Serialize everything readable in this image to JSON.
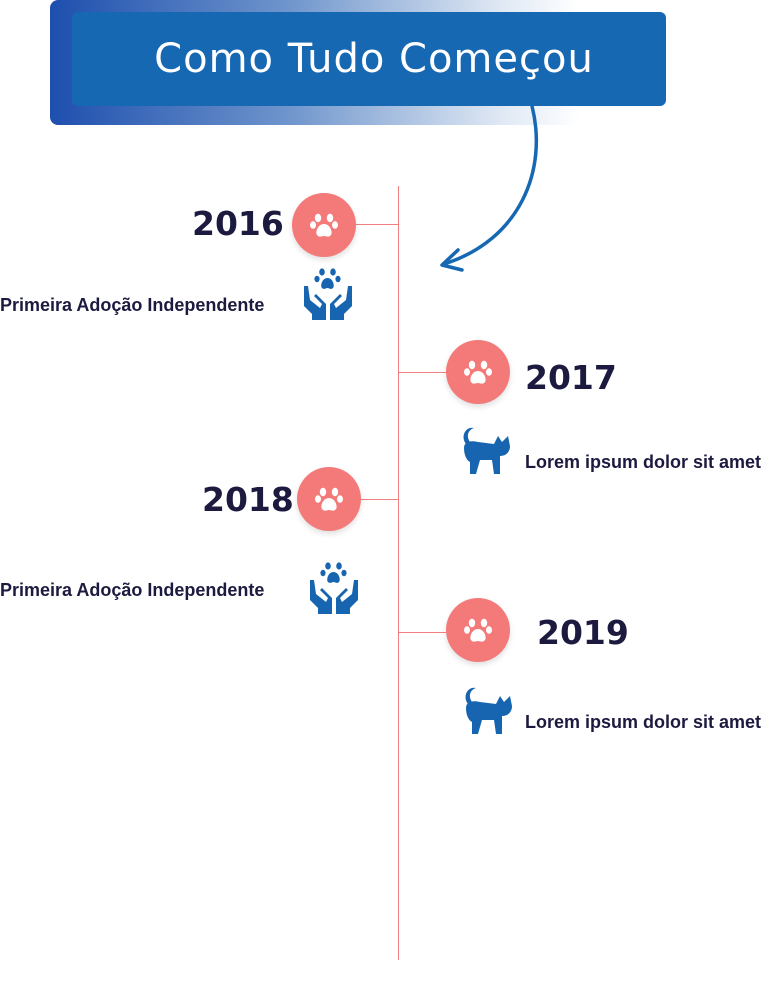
{
  "header": {
    "title": "Como Tudo Começou"
  },
  "colors": {
    "header_bg": "#1668b3",
    "accent": "#f47a7a",
    "icon_blue": "#1765b0",
    "text_dark": "#1c1a3f",
    "line": "#f08080"
  },
  "timeline": [
    {
      "year": "2016",
      "label": "Primeira Adoção Independente",
      "icon": "hands-paw-icon",
      "side": "left"
    },
    {
      "year": "2017",
      "label": "Lorem ipsum dolor sit amet",
      "icon": "cat-icon",
      "side": "right"
    },
    {
      "year": "2018",
      "label": "Primeira Adoção Independente",
      "icon": "hands-paw-icon",
      "side": "left"
    },
    {
      "year": "2019",
      "label": "Lorem ipsum dolor sit amet",
      "icon": "cat-icon",
      "side": "right"
    }
  ]
}
